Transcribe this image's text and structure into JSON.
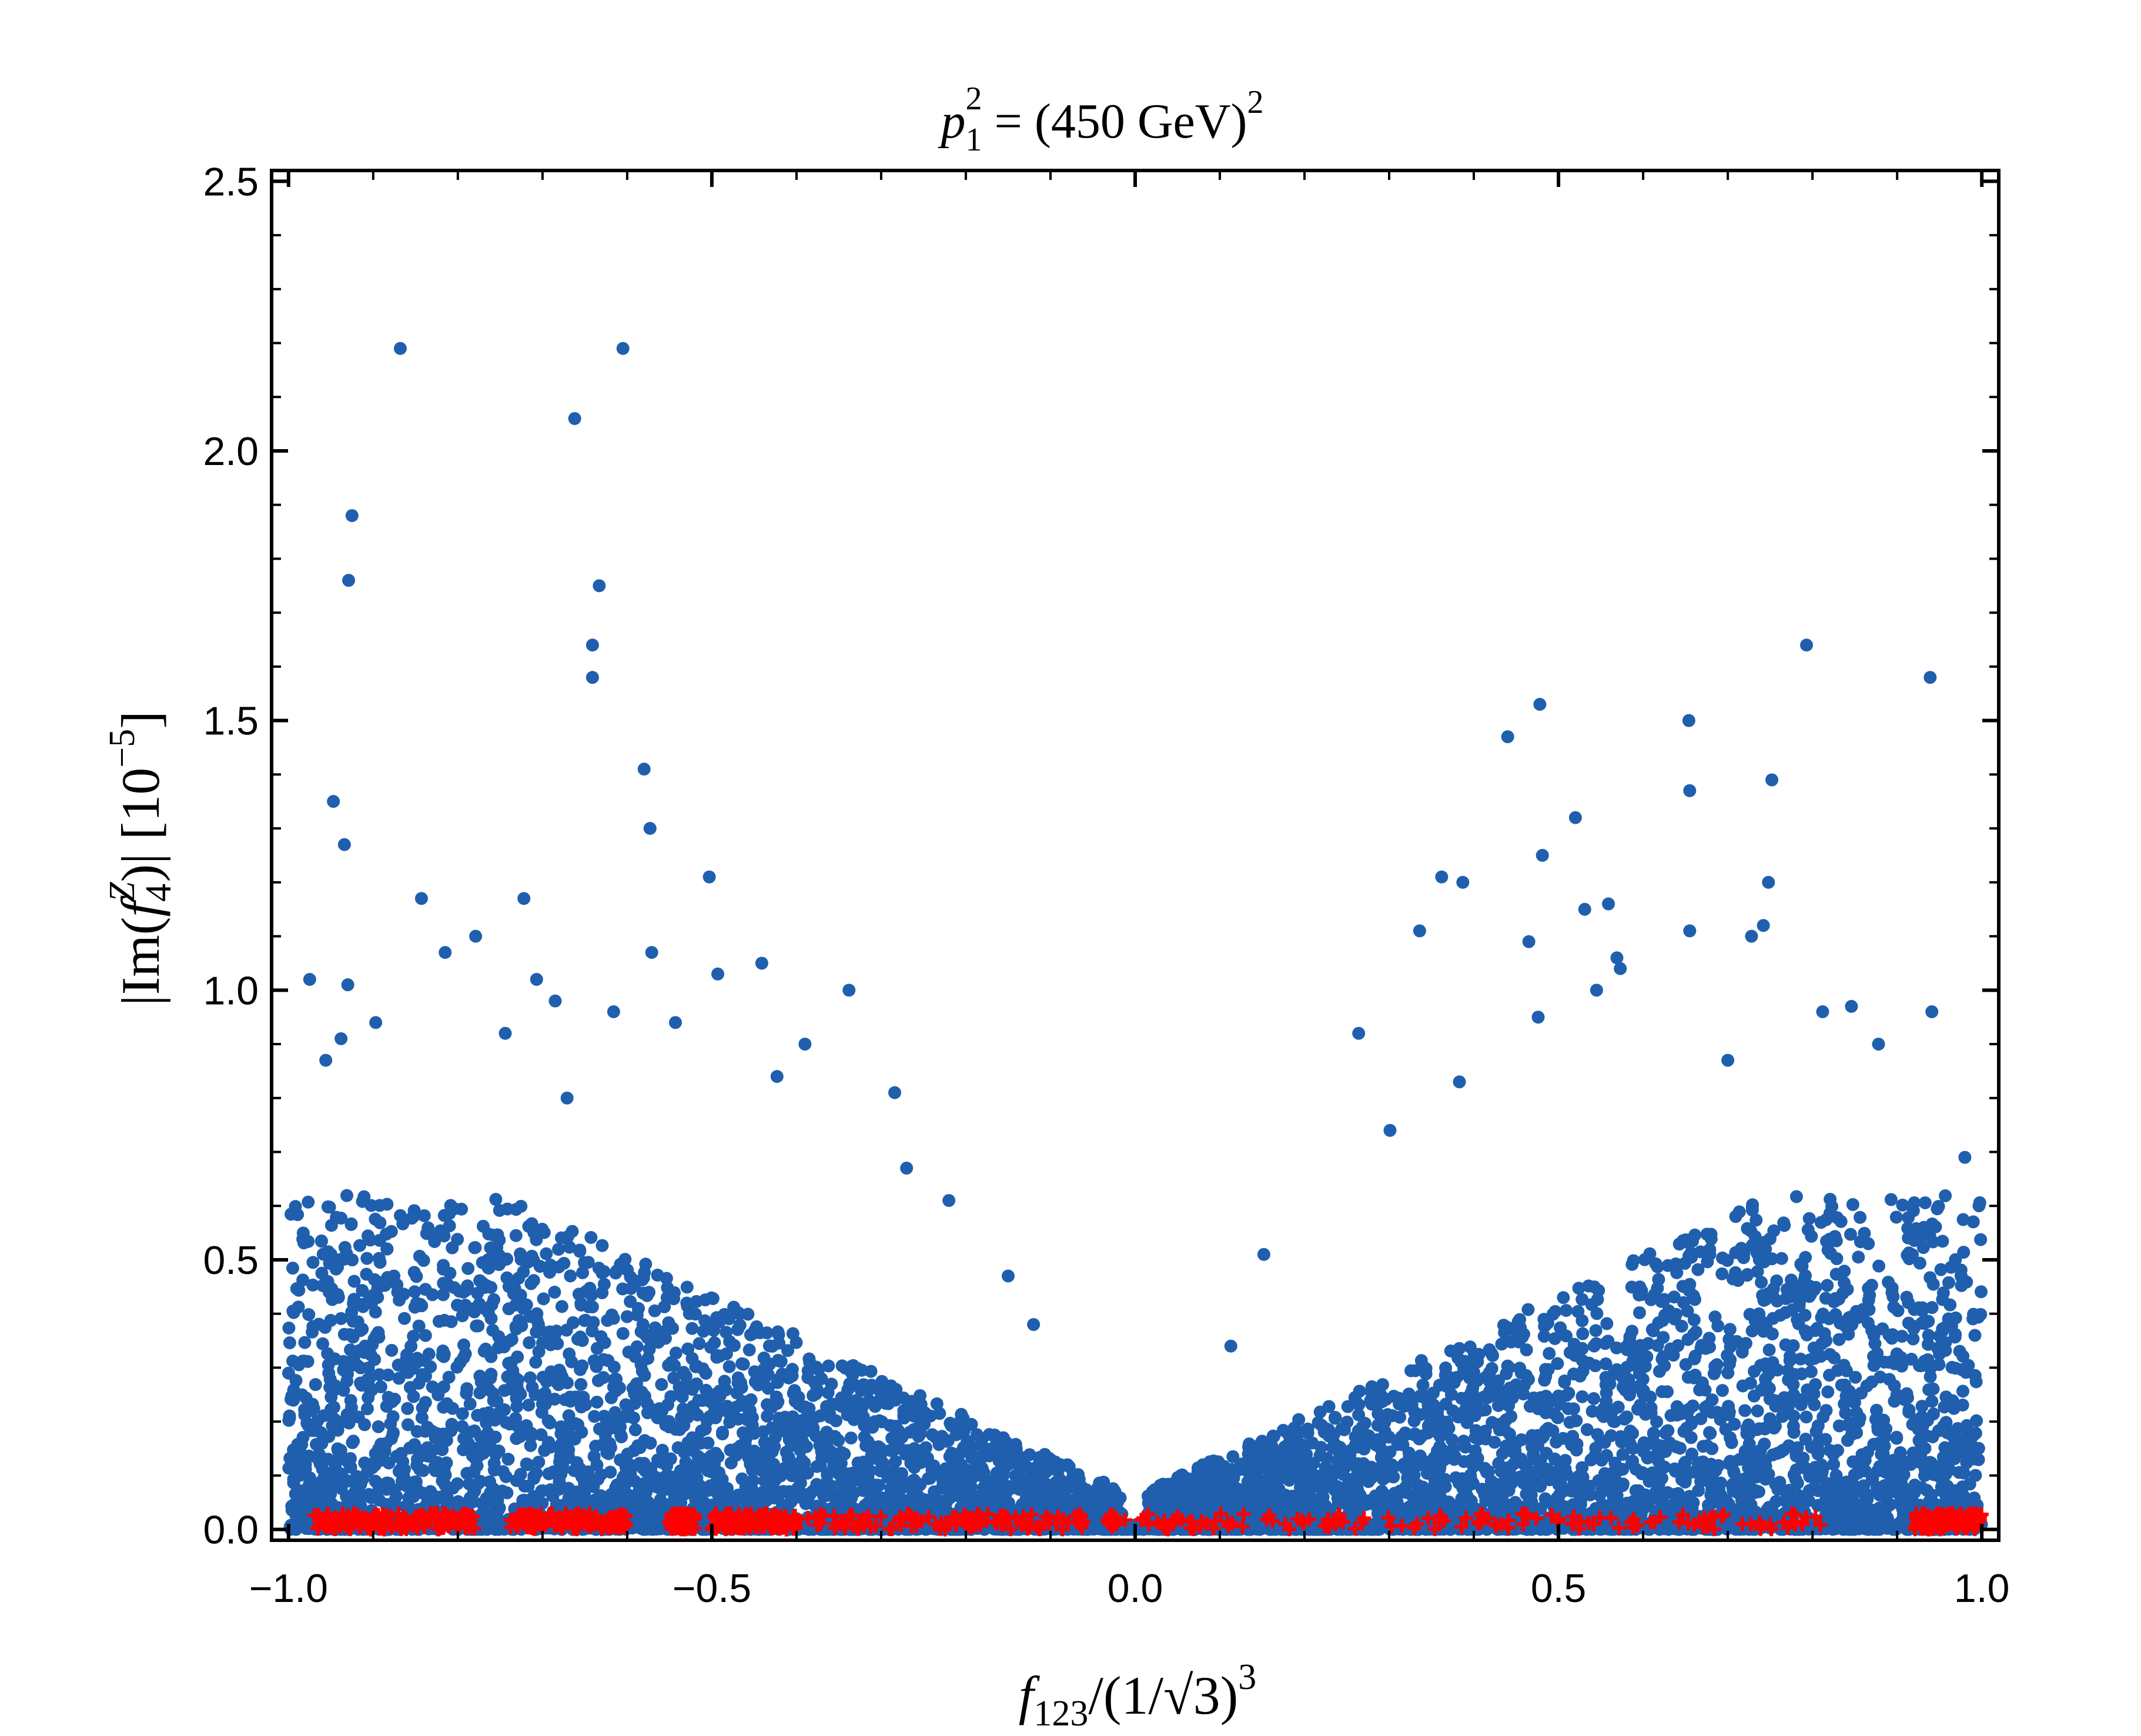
{
  "chart_data": {
    "type": "scatter",
    "title": "p₁² = (450 GeV)²",
    "xlabel": "f₁₂₃/(1/√3)³",
    "ylabel": "|Im(f₄ᶻ)| [10⁻⁵]",
    "xlim": [
      -1.02,
      1.02
    ],
    "ylim": [
      -0.02,
      2.52
    ],
    "x_ticks": [
      "−1.0",
      "−0.5",
      "0.0",
      "0.5",
      "1.0"
    ],
    "x_tick_values": [
      -1.0,
      -0.5,
      0.0,
      0.5,
      1.0
    ],
    "y_ticks": [
      "0.0",
      "0.5",
      "1.0",
      "1.5",
      "2.0",
      "2.5"
    ],
    "y_tick_values": [
      0.0,
      0.5,
      1.0,
      1.5,
      2.0,
      2.5
    ],
    "grid": false,
    "series": [
      {
        "color": "#1f5fae",
        "marker": "circle",
        "description_visible": "dense cloud near zero rising away from f=0",
        "points": [
          [
            -0.975,
            1.02
          ],
          [
            -0.947,
            1.35
          ],
          [
            -0.934,
            1.27
          ],
          [
            -0.929,
            1.76
          ],
          [
            -0.925,
            1.88
          ],
          [
            -0.868,
            2.19
          ],
          [
            -0.93,
            1.01
          ],
          [
            -0.938,
            0.91
          ],
          [
            -0.956,
            0.87
          ],
          [
            -0.897,
            0.94
          ],
          [
            -0.843,
            1.17
          ],
          [
            -0.815,
            1.07
          ],
          [
            -0.779,
            1.1
          ],
          [
            -0.744,
            0.92
          ],
          [
            -0.722,
            1.17
          ],
          [
            -0.707,
            1.02
          ],
          [
            -0.685,
            0.98
          ],
          [
            -0.671,
            0.8
          ],
          [
            -0.662,
            2.06
          ],
          [
            -0.641,
            1.64
          ],
          [
            -0.633,
            1.75
          ],
          [
            -0.641,
            1.58
          ],
          [
            -0.616,
            0.96
          ],
          [
            -0.605,
            2.19
          ],
          [
            -0.58,
            1.41
          ],
          [
            -0.573,
            1.3
          ],
          [
            -0.571,
            1.07
          ],
          [
            -0.543,
            0.94
          ],
          [
            -0.503,
            1.21
          ],
          [
            -0.493,
            1.03
          ],
          [
            -0.441,
            1.05
          ],
          [
            -0.423,
            0.84
          ],
          [
            -0.39,
            0.9
          ],
          [
            -0.338,
            1.0
          ],
          [
            -0.284,
            0.81
          ],
          [
            -0.27,
            0.67
          ],
          [
            -0.22,
            0.61
          ],
          [
            -0.15,
            0.47
          ],
          [
            -0.12,
            0.38
          ],
          [
            -0.08,
            0.12
          ],
          [
            0.08,
            0.12
          ],
          [
            0.113,
            0.34
          ],
          [
            0.152,
            0.51
          ],
          [
            0.264,
            0.92
          ],
          [
            0.301,
            0.74
          ],
          [
            0.336,
            1.11
          ],
          [
            0.362,
            1.21
          ],
          [
            0.387,
            1.2
          ],
          [
            0.383,
            0.83
          ],
          [
            0.44,
            1.47
          ],
          [
            0.465,
            1.09
          ],
          [
            0.478,
            1.53
          ],
          [
            0.481,
            1.25
          ],
          [
            0.476,
            0.95
          ],
          [
            0.52,
            1.32
          ],
          [
            0.531,
            1.15
          ],
          [
            0.545,
            1.0
          ],
          [
            0.559,
            1.16
          ],
          [
            0.569,
            1.06
          ],
          [
            0.573,
            1.04
          ],
          [
            0.654,
            1.5
          ],
          [
            0.655,
            1.37
          ],
          [
            0.655,
            1.11
          ],
          [
            0.7,
            0.87
          ],
          [
            0.728,
            1.1
          ],
          [
            0.742,
            1.12
          ],
          [
            0.748,
            1.2
          ],
          [
            0.752,
            1.39
          ],
          [
            0.793,
            1.64
          ],
          [
            0.812,
            0.96
          ],
          [
            0.846,
            0.97
          ],
          [
            0.878,
            0.9
          ],
          [
            0.939,
            1.58
          ],
          [
            0.941,
            0.96
          ],
          [
            0.98,
            0.69
          ]
        ]
      },
      {
        "color": "#ff0000",
        "marker": "plus",
        "description_visible": "points along zero",
        "points": []
      }
    ]
  }
}
